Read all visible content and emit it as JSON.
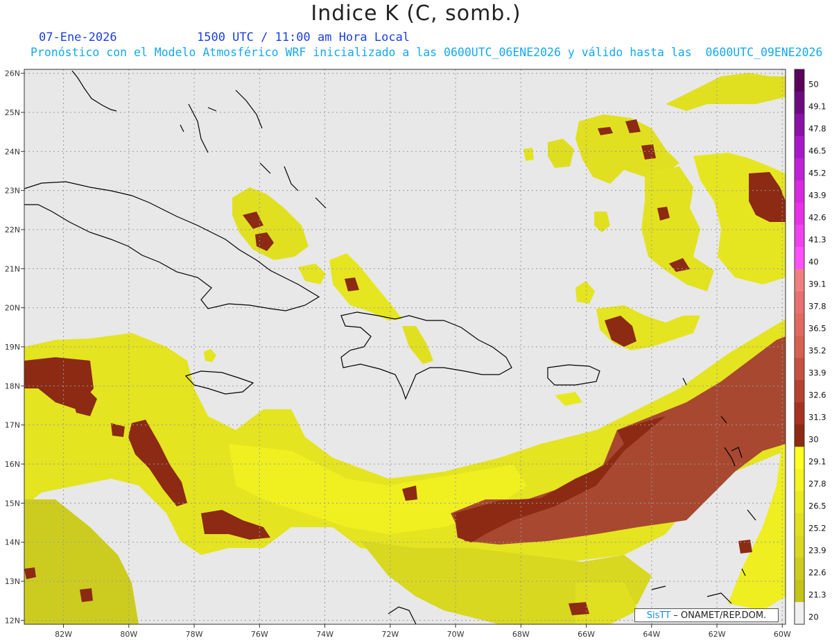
{
  "header": {
    "title": "Indice K (C, somb.)",
    "date": "07-Ene-2026",
    "time": "1500 UTC / 11:00 am Hora Local",
    "forecast": "Pronóstico con el Modelo Atmosférico WRF inicializado a las 0600UTC_06ENE2026 y válido hasta las  0600UTC_09ENE2026"
  },
  "map": {
    "lon_range": [
      -83.2,
      -59.9
    ],
    "lat_range": [
      11.9,
      26.1
    ],
    "lon_ticks": [
      "82W",
      "80W",
      "78W",
      "76W",
      "74W",
      "72W",
      "70W",
      "68W",
      "66W",
      "64W",
      "62W",
      "60W"
    ],
    "lat_ticks": [
      "26N",
      "25N",
      "24N",
      "23N",
      "22N",
      "21N",
      "20N",
      "19N",
      "18N",
      "17N",
      "16N",
      "15N",
      "14N",
      "13N",
      "12N"
    ],
    "background_color": "#e8e8e8"
  },
  "colorbar": {
    "labels": [
      "50",
      "49.1",
      "47.8",
      "46.5",
      "45.2",
      "43.9",
      "42.6",
      "41.3",
      "40",
      "39.1",
      "37.8",
      "36.5",
      "35.2",
      "33.9",
      "32.6",
      "31.3",
      "30",
      "29.1",
      "27.8",
      "26.5",
      "25.2",
      "23.9",
      "22.6",
      "21.3",
      "20"
    ],
    "colors": [
      "#5c005c",
      "#6e0a80",
      "#8a10a8",
      "#a818c8",
      "#c020d8",
      "#d828e0",
      "#e830e8",
      "#f040f0",
      "#ff50ff",
      "#f08080",
      "#e87070",
      "#e06a60",
      "#d86050",
      "#c85040",
      "#b84030",
      "#a83020",
      "#8c2a14",
      "#ffff20",
      "#f4f420",
      "#eaea20",
      "#e0e020",
      "#d8d820",
      "#cccc20",
      "#c4c418",
      "#f0f0f0"
    ]
  },
  "credit": {
    "logo": "SisTT",
    "org": "– ONAMET/REP.DOM."
  }
}
